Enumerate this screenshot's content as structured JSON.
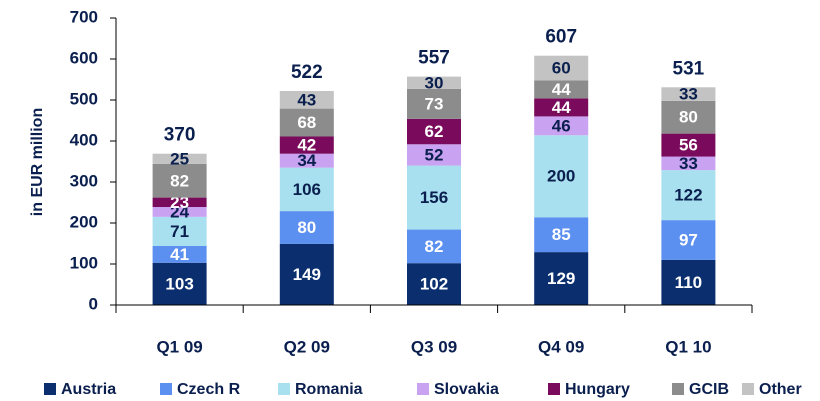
{
  "chart_data": {
    "type": "stacked_bar",
    "y_label": "in EUR million",
    "categories": [
      "Q1 09",
      "Q2 09",
      "Q3 09",
      "Q4 09",
      "Q1 10"
    ],
    "series": [
      {
        "name": "Austria",
        "color": "#0b2f6e",
        "values": [
          103,
          149,
          102,
          129,
          110
        ]
      },
      {
        "name": "Czech R",
        "color": "#5b8ff0",
        "values": [
          41,
          80,
          82,
          85,
          97
        ]
      },
      {
        "name": "Romania",
        "color": "#a8e0f0",
        "values": [
          71,
          106,
          156,
          200,
          122
        ]
      },
      {
        "name": "Slovakia",
        "color": "#c9a2f2",
        "values": [
          24,
          34,
          52,
          46,
          33
        ]
      },
      {
        "name": "Hungary",
        "color": "#7a0b5c",
        "values": [
          23,
          42,
          62,
          44,
          56
        ]
      },
      {
        "name": "GCIB",
        "color": "#8c8c8c",
        "values": [
          82,
          68,
          73,
          44,
          80
        ]
      },
      {
        "name": "Other",
        "color": "#c3c3c3",
        "values": [
          25,
          43,
          30,
          60,
          33
        ]
      }
    ],
    "totals": [
      370,
      522,
      557,
      607,
      531
    ],
    "ylim": [
      0,
      700
    ],
    "yticks": [
      0,
      100,
      200,
      300,
      400,
      500,
      600,
      700
    ]
  }
}
